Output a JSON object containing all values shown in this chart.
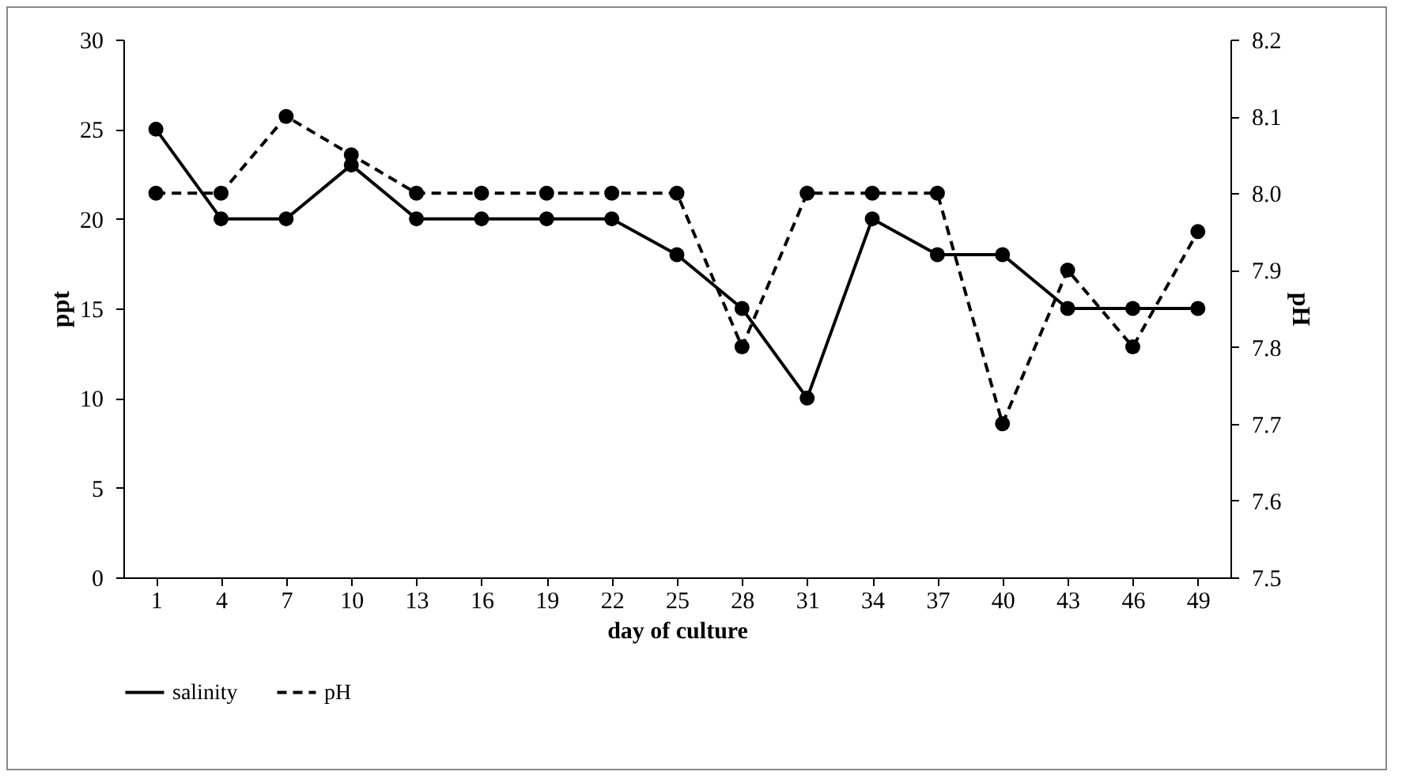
{
  "chart_data": {
    "type": "line",
    "xlabel": "day of culture",
    "ylabel": "ppt",
    "y2label": "pH",
    "categories": [
      "1",
      "4",
      "7",
      "10",
      "13",
      "16",
      "19",
      "22",
      "25",
      "28",
      "31",
      "34",
      "37",
      "40",
      "43",
      "46",
      "49"
    ],
    "series": [
      {
        "name": "salinity",
        "color": "#000000",
        "line_style": "solid",
        "values": [
          25,
          20,
          20,
          23,
          20,
          20,
          20,
          20,
          18,
          15,
          10,
          20,
          18,
          18,
          15,
          15,
          15
        ]
      },
      {
        "name": "pH",
        "color": "#000000",
        "line_style": "dashed",
        "axis": "y2",
        "values": [
          8.0,
          8.0,
          8.1,
          8.05,
          8.0,
          8.0,
          8.0,
          8.0,
          8.0,
          7.8,
          8.0,
          8.0,
          8.0,
          7.7,
          7.9,
          7.8,
          7.95
        ]
      }
    ],
    "ylim": [
      0,
      30
    ],
    "yticks": [
      0,
      5,
      10,
      15,
      20,
      25,
      30
    ],
    "y2lim": [
      7.5,
      8.2
    ],
    "y2ticks": [
      {
        "value": 7.5,
        "label": "7.5"
      },
      {
        "value": 7.6,
        "label": "7.6"
      },
      {
        "value": 7.7,
        "label": "7.7"
      },
      {
        "value": 7.8,
        "label": "7.8"
      },
      {
        "value": 7.9,
        "label": "7.9"
      },
      {
        "value": 8.0,
        "label": "8.0"
      },
      {
        "value": 8.1,
        "label": "8.1"
      },
      {
        "value": 8.2,
        "label": "8.2"
      }
    ],
    "marker": "circle",
    "grid": false,
    "legend": "bottom"
  }
}
